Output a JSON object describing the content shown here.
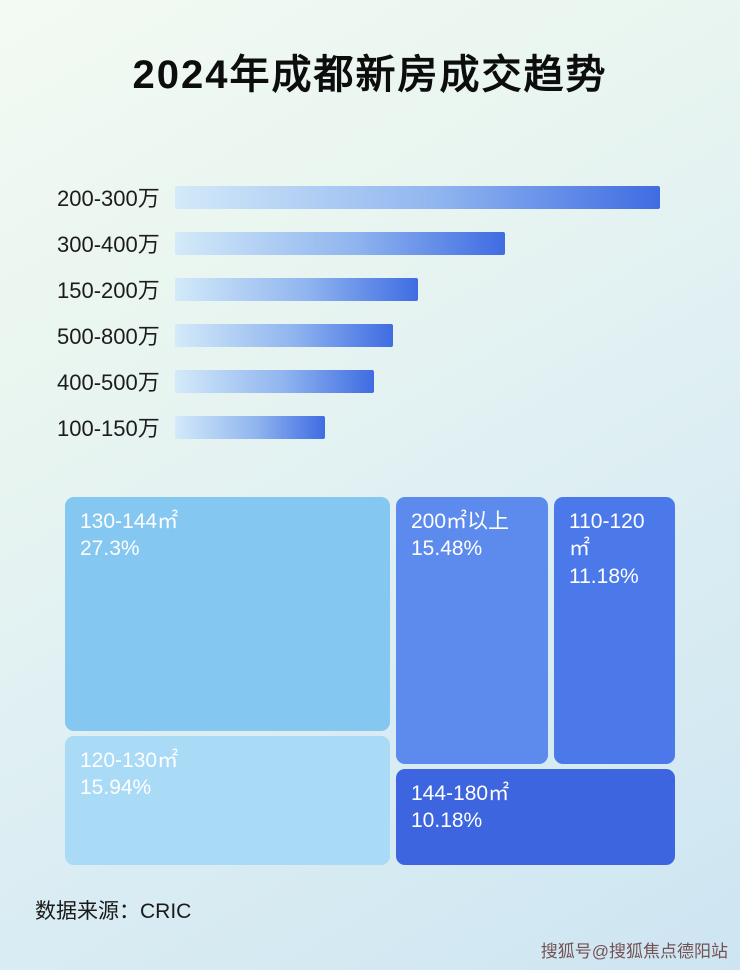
{
  "title": "2024年成都新房成交趋势",
  "footer": {
    "source": "数据来源：CRIC"
  },
  "watermark": "搜狐号@搜狐焦点德阳站",
  "colors": {
    "bar_gradient_start": "#d3eaf9",
    "bar_gradient_end": "#3f6ce2",
    "title_text": "#0d0d0d",
    "treemap_text": "#ffffff"
  },
  "chart_data": [
    {
      "type": "bar",
      "orientation": "horizontal",
      "title": "2024年成都新房成交趋势",
      "note": "bar lengths are unlabeled in the image; values are relative widths with the longest bar = 100",
      "categories": [
        "200-300万",
        "300-400万",
        "150-200万",
        "500-800万",
        "400-500万",
        "100-150万"
      ],
      "values": [
        100,
        68,
        50,
        45,
        41,
        31
      ],
      "xlabel": "",
      "ylabel": "",
      "grid": false,
      "legend": false
    },
    {
      "type": "treemap",
      "items": [
        {
          "label": "130-144㎡",
          "value": "27.3%",
          "percent": 27.3,
          "color": "#84c7f1"
        },
        {
          "label": "200㎡以上",
          "value": "15.48%",
          "percent": 15.48,
          "color": "#5d8bed"
        },
        {
          "label": "110-120㎡",
          "value": "11.18%",
          "percent": 11.18,
          "color": "#4b79e9"
        },
        {
          "label": "120-130㎡",
          "value": "15.94%",
          "percent": 15.94,
          "color": "#a9daf6"
        },
        {
          "label": "144-180㎡",
          "value": "10.18%",
          "percent": 10.18,
          "color": "#3c65df"
        }
      ]
    }
  ]
}
